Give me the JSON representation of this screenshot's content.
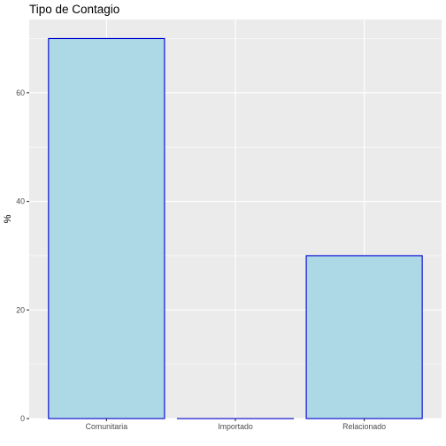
{
  "chart_data": {
    "type": "bar",
    "title": "Tipo de Contagio",
    "xlabel": "",
    "ylabel": "%",
    "categories": [
      "Comunitaria",
      "Importado",
      "Relacionado"
    ],
    "values": [
      70,
      0,
      30
    ],
    "ylim": [
      0,
      73.5
    ],
    "yticks": [
      0,
      20,
      40,
      60
    ],
    "grid": true,
    "legend": "none",
    "colors": {
      "panel_background": "#ebebeb",
      "grid_major": "#ffffff",
      "bar_fill": "#add8e6",
      "bar_outline": "#0000cd",
      "tick_text": "#4d4d4d",
      "tick_mark": "#333333"
    }
  }
}
